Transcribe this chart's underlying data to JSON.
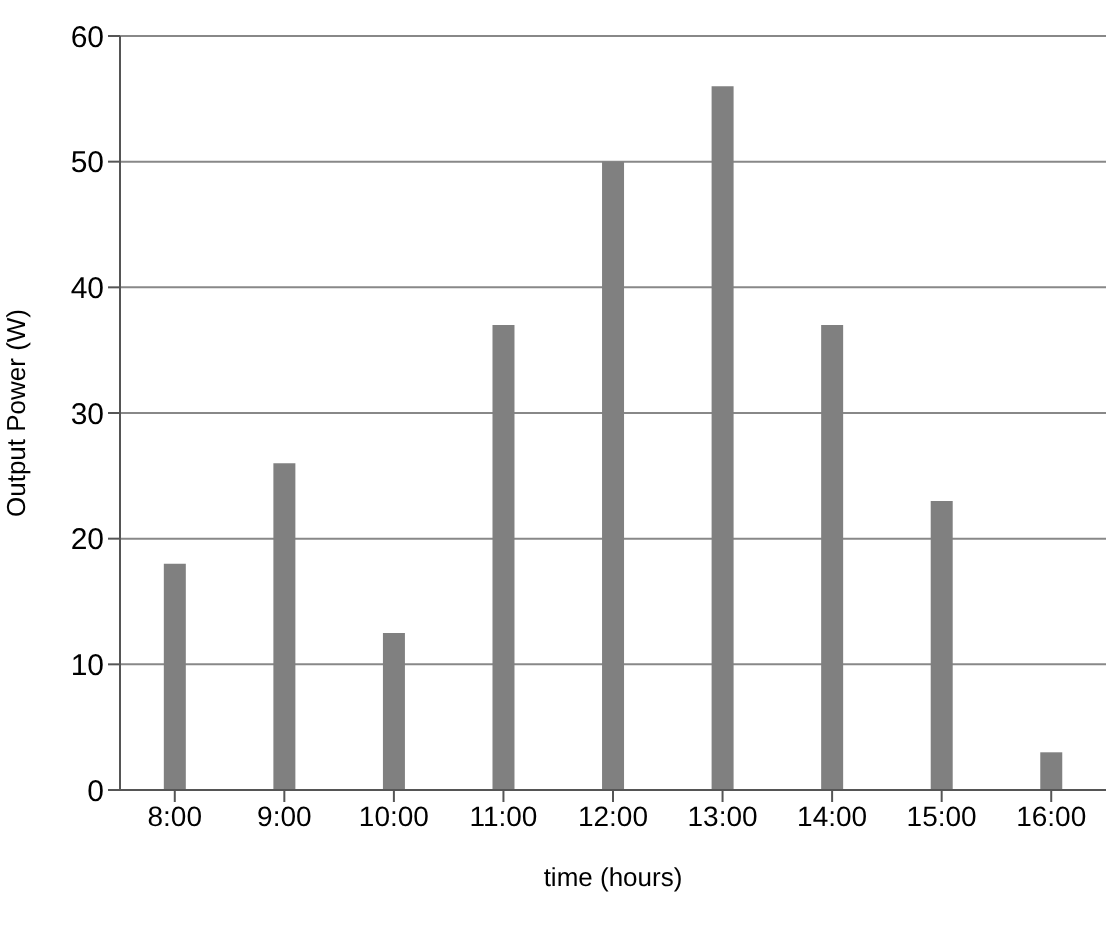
{
  "chart_data": {
    "type": "bar",
    "xlabel": "time (hours)",
    "ylabel": "Output Power (W)",
    "categories": [
      "8:00",
      "9:00",
      "10:00",
      "11:00",
      "12:00",
      "13:00",
      "14:00",
      "15:00",
      "16:00"
    ],
    "values": [
      18,
      26,
      12.5,
      37,
      50,
      56,
      37,
      23,
      3
    ],
    "color": "#808080",
    "ylim": [
      0,
      60
    ],
    "yticks": [
      0,
      10,
      20,
      30,
      40,
      50,
      60
    ],
    "grid": "y"
  }
}
